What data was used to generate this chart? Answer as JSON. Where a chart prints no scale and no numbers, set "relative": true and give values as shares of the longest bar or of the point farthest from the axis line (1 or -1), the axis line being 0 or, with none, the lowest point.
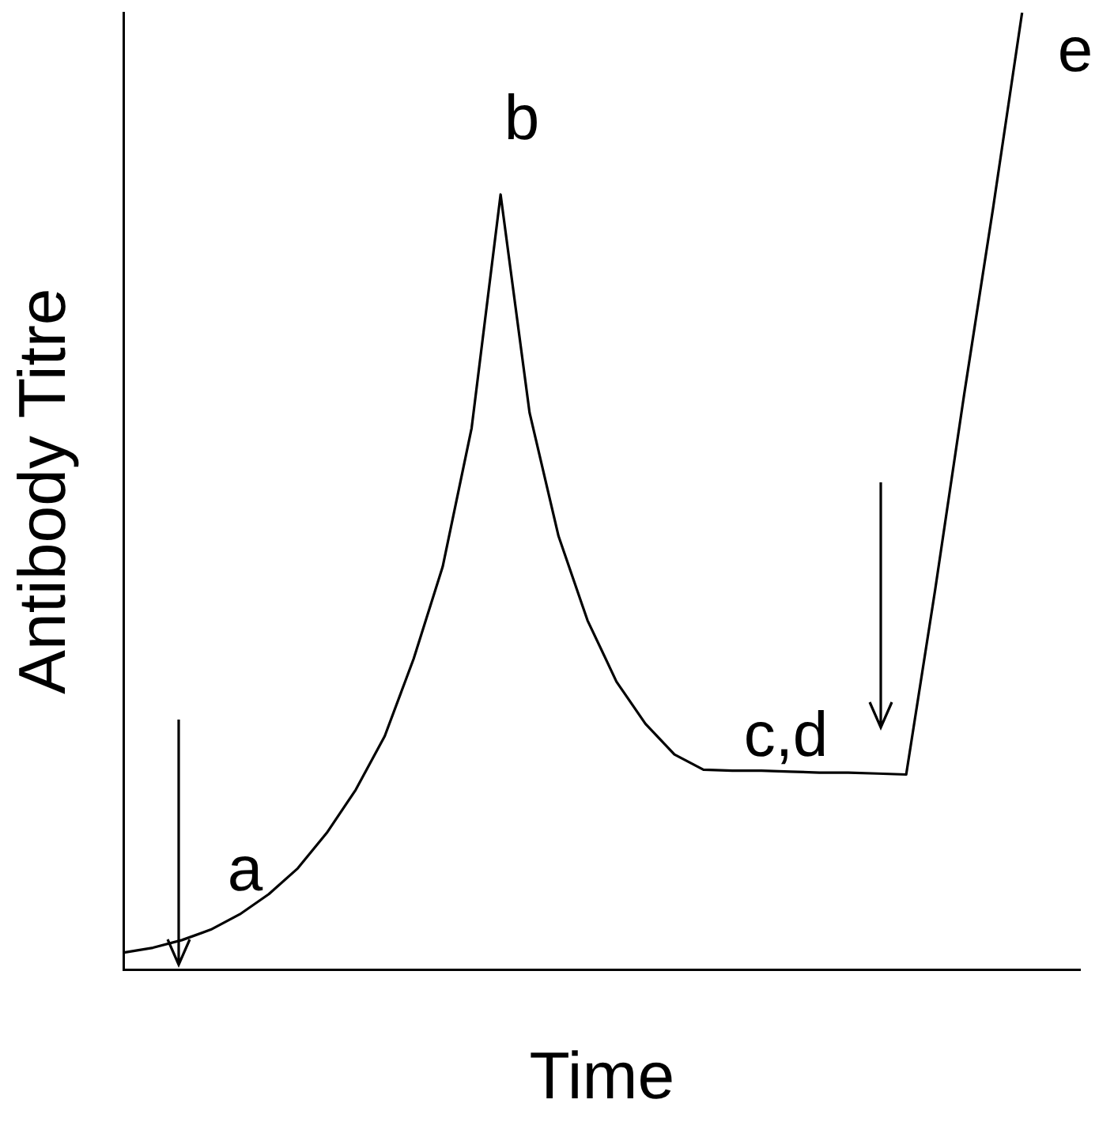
{
  "chart_data": {
    "type": "line",
    "relative": true,
    "xlabel": "Time",
    "ylabel": "Antibody Titre",
    "categories": [
      null,
      null,
      null,
      null,
      null,
      null,
      null,
      null,
      null,
      null,
      null,
      null,
      null,
      null,
      null,
      null,
      null,
      null,
      null,
      null,
      null,
      null,
      null,
      null,
      null,
      null,
      null,
      null,
      null,
      null,
      null,
      null,
      null,
      null
    ],
    "series": [
      {
        "color": "#000000",
        "values": [
          0.018,
          0.023,
          0.031,
          0.042,
          0.058,
          0.079,
          0.106,
          0.143,
          0.188,
          0.244,
          0.325,
          0.421,
          0.566,
          0.81,
          0.582,
          0.453,
          0.365,
          0.301,
          0.257,
          0.225,
          0.209,
          0.208,
          0.208,
          0.207,
          0.206,
          0.206,
          0.205,
          0.204,
          0.397,
          0.601,
          0.796,
          1,
          null,
          null
        ]
      }
    ],
    "annotations": [
      "a",
      "b",
      "c,d",
      "e"
    ],
    "grid": false,
    "legend": false,
    "marker": "none",
    "line_style": "solid"
  }
}
